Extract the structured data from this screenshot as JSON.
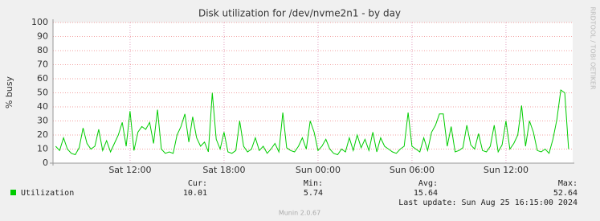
{
  "chart_data": {
    "type": "line",
    "title": "Disk utilization for /dev/nvme2n1 - by day",
    "y_label": "% busy",
    "watermark": "RRDTOOL / TOBI OETIKER",
    "ylim": [
      0,
      100
    ],
    "yticks": [
      0,
      10,
      20,
      30,
      40,
      50,
      60,
      70,
      80,
      90,
      100
    ],
    "xlim": [
      7.08,
      40.26
    ],
    "xticks": [
      {
        "value": 12,
        "label": "Sat 12:00"
      },
      {
        "value": 18,
        "label": "Sat 18:00"
      },
      {
        "value": 24,
        "label": "Sun 00:00"
      },
      {
        "value": 30,
        "label": "Sun 06:00"
      },
      {
        "value": 36,
        "label": "Sun 12:00"
      }
    ],
    "grid": true,
    "x": [
      7.25,
      7.5,
      7.75,
      8,
      8.25,
      8.5,
      8.75,
      9,
      9.25,
      9.5,
      9.75,
      10,
      10.25,
      10.5,
      10.75,
      11,
      11.25,
      11.5,
      11.75,
      12,
      12.25,
      12.5,
      12.75,
      13,
      13.25,
      13.5,
      13.75,
      14,
      14.25,
      14.5,
      14.75,
      15,
      15.25,
      15.5,
      15.75,
      16,
      16.25,
      16.5,
      16.75,
      17,
      17.25,
      17.5,
      17.75,
      18,
      18.25,
      18.5,
      18.75,
      19,
      19.25,
      19.5,
      19.75,
      20,
      20.25,
      20.5,
      20.75,
      21,
      21.25,
      21.5,
      21.75,
      22,
      22.25,
      22.5,
      22.75,
      23,
      23.25,
      23.5,
      23.75,
      24,
      24.25,
      24.5,
      24.75,
      25,
      25.25,
      25.5,
      25.75,
      26,
      26.25,
      26.5,
      26.75,
      27,
      27.25,
      27.5,
      27.75,
      28,
      28.25,
      28.5,
      28.75,
      29,
      29.25,
      29.5,
      29.75,
      30,
      30.25,
      30.5,
      30.75,
      31,
      31.25,
      31.5,
      31.75,
      32,
      32.25,
      32.5,
      32.75,
      33,
      33.25,
      33.5,
      33.75,
      34,
      34.25,
      34.5,
      34.75,
      35,
      35.25,
      35.5,
      35.75,
      36,
      36.25,
      36.5,
      36.75,
      37,
      37.25,
      37.5,
      37.75,
      38,
      38.25,
      38.5,
      38.75,
      39,
      39.25,
      39.5,
      39.75,
      40
    ],
    "series": [
      {
        "name": "Utilization",
        "color": "#00cc00",
        "values": [
          12,
          9,
          18,
          10,
          7,
          6,
          11,
          25,
          14,
          10,
          12,
          24,
          9,
          16,
          8,
          14,
          20,
          29,
          12,
          37,
          9,
          22,
          26,
          24,
          29,
          14,
          38,
          10,
          7,
          8,
          7,
          20,
          26,
          35,
          15,
          33,
          18,
          12,
          15,
          8,
          50,
          17,
          10,
          22,
          8,
          7,
          9,
          30,
          12,
          8,
          10,
          18,
          9,
          12,
          7,
          10,
          14,
          8,
          36,
          11,
          9,
          8,
          12,
          18,
          10,
          30,
          22,
          9,
          12,
          17,
          10,
          7,
          6,
          10,
          8,
          18,
          9,
          20,
          11,
          17,
          9,
          22,
          8,
          18,
          12,
          10,
          8,
          7,
          10,
          12,
          36,
          12,
          10,
          8,
          18,
          9,
          22,
          27,
          35,
          35,
          12,
          26,
          8,
          9,
          11,
          27,
          13,
          10,
          21,
          9,
          8,
          12,
          27,
          8,
          13,
          30,
          10,
          14,
          20,
          41,
          12,
          30,
          22,
          9,
          8,
          10,
          7,
          17,
          31,
          52,
          50,
          10.01
        ]
      }
    ],
    "stats": [
      {
        "label": "Cur:",
        "value": 10.01
      },
      {
        "label": "Min:",
        "value": 5.74
      },
      {
        "label": "Avg:",
        "value": 15.64
      },
      {
        "label": "Max:",
        "value": 52.64
      }
    ],
    "last_update": "Last update: Sun Aug 25 16:15:00 2024",
    "footer": "Munin 2.0.67"
  }
}
